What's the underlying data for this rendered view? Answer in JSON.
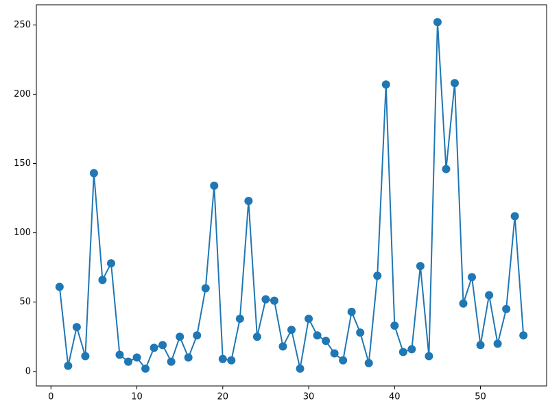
{
  "chart_data": {
    "type": "line",
    "color": "#1f77b4",
    "marker": "o",
    "x": [
      1,
      2,
      3,
      4,
      5,
      6,
      7,
      8,
      9,
      10,
      11,
      12,
      13,
      14,
      15,
      16,
      17,
      18,
      19,
      20,
      21,
      22,
      23,
      24,
      25,
      26,
      27,
      28,
      29,
      30,
      31,
      32,
      33,
      34,
      35,
      36,
      37,
      38,
      39,
      40,
      41,
      42,
      43,
      44,
      45,
      46,
      47,
      48,
      49,
      50,
      51,
      52,
      53,
      54,
      55
    ],
    "values": [
      61,
      4,
      32,
      11,
      143,
      66,
      78,
      12,
      7,
      10,
      2,
      17,
      19,
      7,
      25,
      10,
      26,
      60,
      134,
      9,
      8,
      38,
      123,
      25,
      52,
      51,
      18,
      30,
      2,
      38,
      26,
      22,
      13,
      8,
      43,
      28,
      6,
      69,
      207,
      33,
      14,
      16,
      76,
      11,
      252,
      146,
      208,
      49,
      68,
      19,
      55,
      20,
      45,
      112,
      26
    ],
    "xlim": [
      -1.7,
      57.7
    ],
    "ylim": [
      -10.5,
      264.5
    ],
    "xticks": [
      0,
      10,
      20,
      30,
      40,
      50
    ],
    "yticks": [
      0,
      50,
      100,
      150,
      200,
      250
    ],
    "grid": false
  }
}
